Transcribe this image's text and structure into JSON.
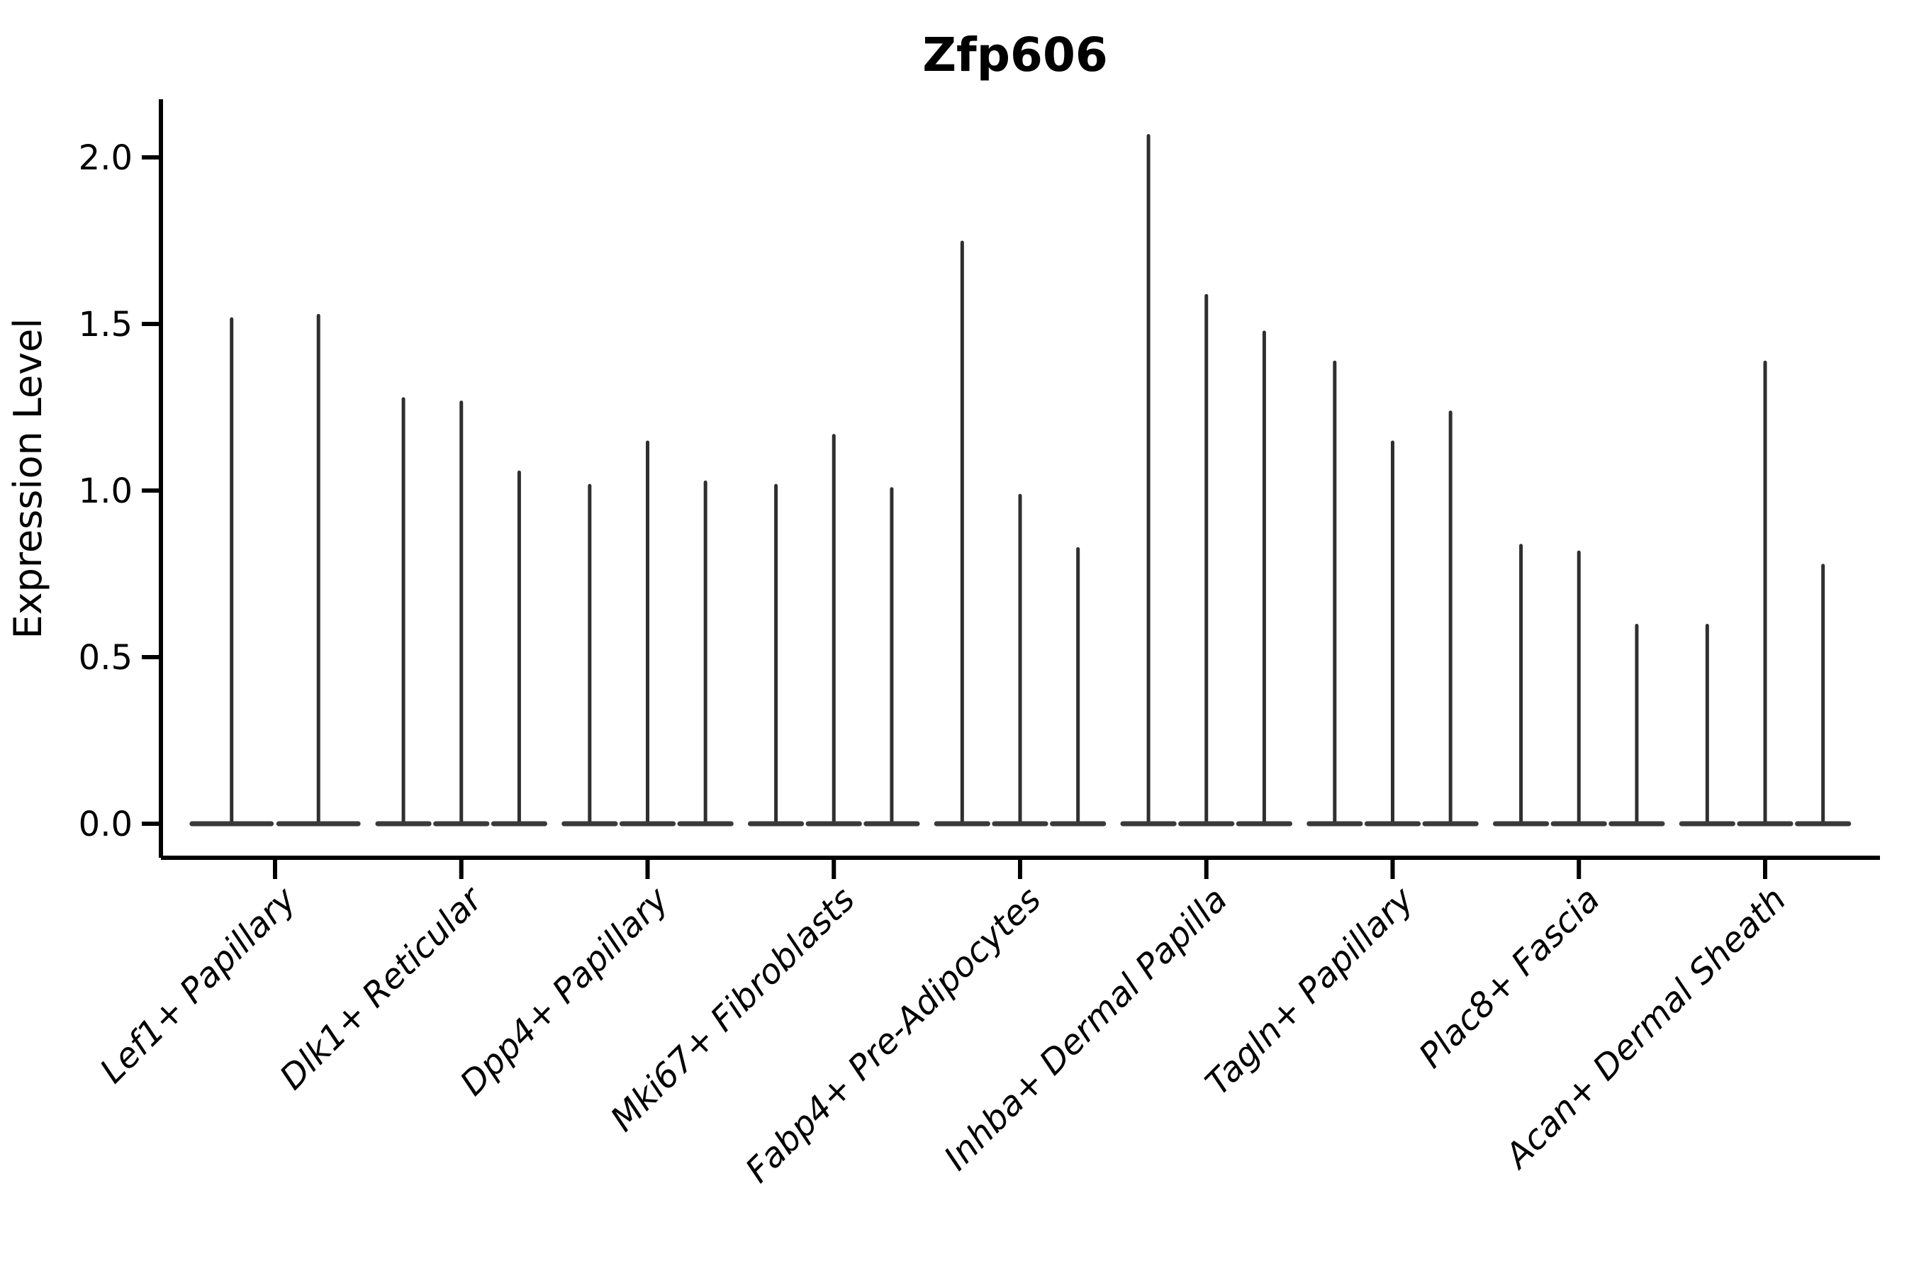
{
  "title": "Zfp606",
  "ylabel": "Expression Level",
  "chart_data": {
    "type": "violin",
    "title": "Zfp606",
    "xlabel": "",
    "ylabel": "Expression Level",
    "ylim": [
      -0.1,
      2.17
    ],
    "yticks": [
      0.0,
      0.5,
      1.0,
      1.5,
      2.0
    ],
    "grid": false,
    "legend": "none",
    "xtick_rotation": 45,
    "violin_color": "#2f2f2f",
    "description": "Each violin is a near-zero-width spike: density mass concentrated at 0 (flat wide base) with a thin stem reaching the maximum expression value listed.",
    "categories": [
      "Lef1+ Papillary",
      "Dlk1+ Reticular",
      "Dpp4+ Papillary",
      "Mki67+ Fibroblasts",
      "Fabp4+ Pre-Adipocytes",
      "Inhba+ Dermal Papilla",
      "Tagln+ Papillary",
      "Plac8+ Fascia",
      "Acan+ Dermal Sheath"
    ],
    "violin_maxima": [
      [
        1.52,
        1.53
      ],
      [
        1.28,
        1.27,
        1.06
      ],
      [
        1.02,
        1.15,
        1.03
      ],
      [
        1.02,
        1.17,
        1.01
      ],
      [
        1.75,
        0.99,
        0.83
      ],
      [
        2.07,
        1.59,
        1.48
      ],
      [
        1.39,
        1.15,
        1.24
      ],
      [
        0.84,
        0.82,
        0.6
      ],
      [
        0.6,
        1.39,
        0.78
      ]
    ],
    "baseline_value": 0.0
  }
}
